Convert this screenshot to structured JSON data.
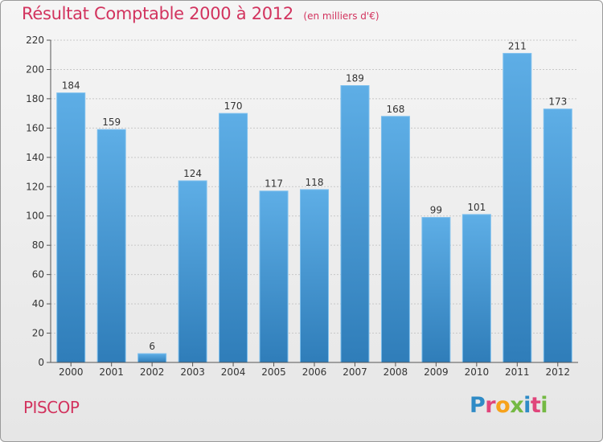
{
  "title": {
    "main": "Résultat Comptable 2000 à 2012",
    "unit": "(en milliers d'€)"
  },
  "commune": "PISCOP",
  "logo": {
    "text": "Proxiti",
    "colors": [
      "#2f8bc6",
      "#e0457b",
      "#f7a21b",
      "#74b943",
      "#2f8bc6",
      "#e0457b",
      "#74b943"
    ]
  },
  "colors": {
    "bar_top": "#5eaee6",
    "bar_bottom": "#2f7db9",
    "title": "#d2335e",
    "axis": "#555555",
    "grid": "#c8c8c8"
  },
  "chart_data": {
    "type": "bar",
    "categories": [
      "2000",
      "2001",
      "2002",
      "2003",
      "2004",
      "2005",
      "2006",
      "2007",
      "2008",
      "2009",
      "2010",
      "2011",
      "2012"
    ],
    "values": [
      184,
      159,
      6,
      124,
      170,
      117,
      118,
      189,
      168,
      99,
      101,
      211,
      173
    ],
    "ylim": [
      0,
      220
    ],
    "yticks": [
      0,
      20,
      40,
      60,
      80,
      100,
      120,
      140,
      160,
      180,
      200,
      220
    ],
    "grid": true,
    "data_labels": true
  }
}
